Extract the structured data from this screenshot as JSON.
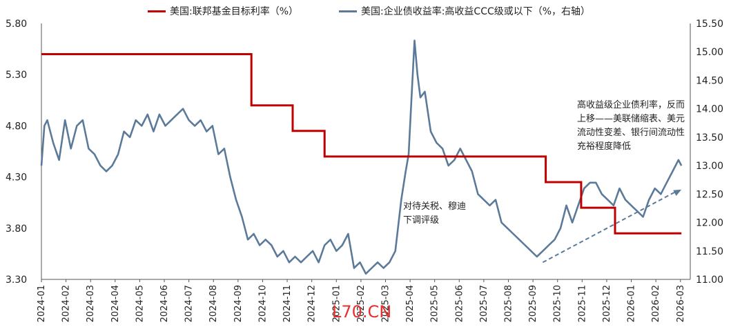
{
  "legend": {
    "left_label": "美国:联邦基金目标利率（%）",
    "right_label": "美国:企业债收益率:高收益CCC级或以下（%，右轴）"
  },
  "annotations": {
    "tariff": [
      "对待关税、穆迪",
      "下调评级"
    ],
    "highyield": [
      "高收益级企业债利率，反而",
      "上移——美联储缩表、美元",
      "流动性变差、银行间流动性",
      "充裕程度降低"
    ]
  },
  "watermark": "L70.CN",
  "colors": {
    "fed": "#c00000",
    "ccc": "#5b7a99",
    "trend": "#5b7a99"
  },
  "chart_data": {
    "type": "line",
    "title": "",
    "x_categories": [
      "2024-01",
      "2024-02",
      "2024-03",
      "2024-04",
      "2024-05",
      "2024-06",
      "2024-07",
      "2024-08",
      "2024-09",
      "2024-10",
      "2024-11",
      "2024-12",
      "2025-01",
      "2025-02",
      "2025-03",
      "2025-04",
      "2025-05",
      "2025-06",
      "2025-07",
      "2025-08",
      "2025-09",
      "2025-10",
      "2025-11",
      "2025-12",
      "2026-01",
      "2026-02",
      "2026-03"
    ],
    "left_axis": {
      "ylim": [
        3.3,
        5.8
      ],
      "ticks": [
        "3.30",
        "3.80",
        "4.30",
        "4.80",
        "5.30",
        "5.80"
      ]
    },
    "right_axis": {
      "ylim": [
        11.0,
        15.5
      ],
      "ticks": [
        "11.00",
        "11.50",
        "12.00",
        "12.50",
        "13.00",
        "13.50",
        "14.00",
        "14.50",
        "15.00",
        "15.50"
      ]
    },
    "series": [
      {
        "name": "美国:联邦基金目标利率（%）",
        "axis": "left",
        "type": "step",
        "x": [
          2024.0,
          2024.712,
          2024.712,
          2024.852,
          2024.852,
          2024.96,
          2024.96,
          2025.71,
          2025.71,
          2025.83,
          2025.83,
          2025.945,
          2025.945,
          2026.17
        ],
        "y": [
          5.5,
          5.5,
          5.0,
          5.0,
          4.75,
          4.75,
          4.5,
          4.5,
          4.25,
          4.25,
          4.0,
          4.0,
          3.75,
          3.75
        ]
      },
      {
        "name": "美国:企业债收益率:高收益CCC级或以下（%，右轴）",
        "axis": "right",
        "x": [
          2024.0,
          2024.01,
          2024.02,
          2024.04,
          2024.06,
          2024.08,
          2024.1,
          2024.12,
          2024.14,
          2024.16,
          2024.18,
          2024.2,
          2024.22,
          2024.24,
          2024.26,
          2024.28,
          2024.3,
          2024.32,
          2024.34,
          2024.36,
          2024.38,
          2024.4,
          2024.42,
          2024.44,
          2024.46,
          2024.48,
          2024.5,
          2024.52,
          2024.54,
          2024.56,
          2024.58,
          2024.6,
          2024.62,
          2024.64,
          2024.66,
          2024.68,
          2024.7,
          2024.72,
          2024.74,
          2024.76,
          2024.78,
          2024.8,
          2024.82,
          2024.84,
          2024.86,
          2024.88,
          2024.9,
          2024.92,
          2024.94,
          2024.96,
          2024.98,
          2025.0,
          2025.02,
          2025.04,
          2025.06,
          2025.08,
          2025.1,
          2025.12,
          2025.14,
          2025.16,
          2025.18,
          2025.2,
          2025.22,
          2025.235,
          2025.245,
          2025.255,
          2025.265,
          2025.275,
          2025.285,
          2025.3,
          2025.32,
          2025.34,
          2025.36,
          2025.38,
          2025.4,
          2025.42,
          2025.44,
          2025.46,
          2025.48,
          2025.5,
          2025.52,
          2025.54,
          2025.56,
          2025.58,
          2025.6,
          2025.62,
          2025.64,
          2025.66,
          2025.68,
          2025.7,
          2025.72,
          2025.74,
          2025.76,
          2025.78,
          2025.8,
          2025.82,
          2025.84,
          2025.86,
          2025.88,
          2025.9,
          2025.92,
          2025.94,
          2025.96,
          2025.98,
          2026.0,
          2026.02,
          2026.04,
          2026.06,
          2026.08,
          2026.1,
          2026.12,
          2026.14,
          2026.16,
          2026.17
        ],
        "y": [
          13.0,
          13.7,
          13.8,
          13.4,
          13.1,
          13.8,
          13.3,
          13.7,
          13.8,
          13.3,
          13.2,
          13.0,
          12.9,
          13.0,
          13.2,
          13.6,
          13.5,
          13.8,
          13.7,
          13.9,
          13.6,
          13.9,
          13.7,
          13.8,
          13.9,
          14.0,
          13.8,
          13.7,
          13.8,
          13.6,
          13.7,
          13.2,
          13.3,
          12.8,
          12.4,
          12.1,
          11.7,
          11.8,
          11.6,
          11.7,
          11.6,
          11.4,
          11.5,
          11.3,
          11.4,
          11.3,
          11.4,
          11.5,
          11.3,
          11.6,
          11.7,
          11.5,
          11.6,
          11.8,
          11.2,
          11.3,
          11.1,
          11.2,
          11.3,
          11.2,
          11.3,
          11.5,
          12.4,
          12.9,
          13.2,
          14.2,
          15.2,
          14.6,
          14.2,
          14.3,
          13.6,
          13.4,
          13.3,
          13.0,
          13.1,
          13.3,
          13.1,
          12.9,
          12.5,
          12.4,
          12.3,
          12.4,
          12.0,
          11.9,
          11.8,
          11.7,
          11.6,
          11.5,
          11.4,
          11.5,
          11.6,
          11.7,
          11.9,
          12.3,
          12.0,
          12.3,
          12.6,
          12.7,
          12.7,
          12.5,
          12.4,
          12.3,
          12.6,
          12.4,
          12.3,
          12.2,
          12.1,
          12.4,
          12.6,
          12.5,
          12.7,
          12.9,
          13.1,
          13.0
        ]
      }
    ],
    "trend_arrow": {
      "axis": "right",
      "from": [
        2025.7,
        11.3
      ],
      "to": [
        2026.17,
        12.58
      ]
    }
  }
}
